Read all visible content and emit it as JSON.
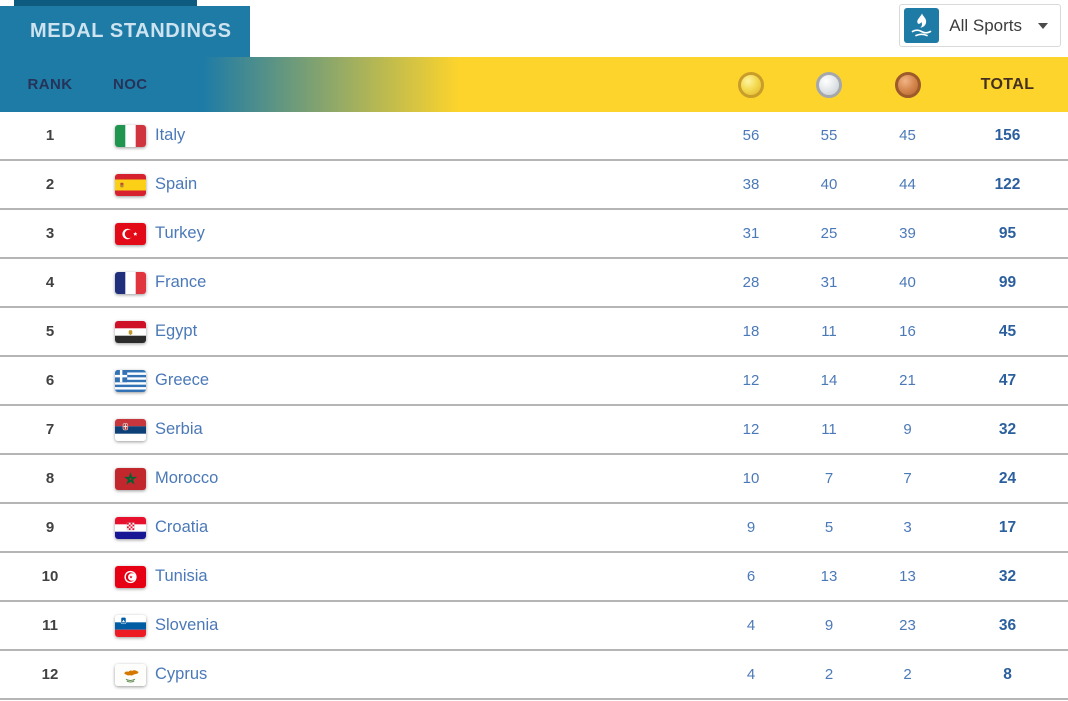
{
  "header": {
    "title": "MEDAL STANDINGS",
    "sport_filter": {
      "label": "All Sports",
      "icon": "games-torch-icon"
    }
  },
  "table": {
    "columns": {
      "rank": "RANK",
      "noc": "NOC",
      "gold": "gold-medal-icon",
      "silver": "silver-medal-icon",
      "bronze": "bronze-medal-icon",
      "total": "TOTAL"
    },
    "rows": [
      {
        "rank": "1",
        "country": "Italy",
        "flag": "it",
        "gold": "56",
        "silver": "55",
        "bronze": "45",
        "total": "156"
      },
      {
        "rank": "2",
        "country": "Spain",
        "flag": "es",
        "gold": "38",
        "silver": "40",
        "bronze": "44",
        "total": "122"
      },
      {
        "rank": "3",
        "country": "Turkey",
        "flag": "tr",
        "gold": "31",
        "silver": "25",
        "bronze": "39",
        "total": "95"
      },
      {
        "rank": "4",
        "country": "France",
        "flag": "fr",
        "gold": "28",
        "silver": "31",
        "bronze": "40",
        "total": "99"
      },
      {
        "rank": "5",
        "country": "Egypt",
        "flag": "eg",
        "gold": "18",
        "silver": "11",
        "bronze": "16",
        "total": "45"
      },
      {
        "rank": "6",
        "country": "Greece",
        "flag": "gr",
        "gold": "12",
        "silver": "14",
        "bronze": "21",
        "total": "47"
      },
      {
        "rank": "7",
        "country": "Serbia",
        "flag": "rs",
        "gold": "12",
        "silver": "11",
        "bronze": "9",
        "total": "32"
      },
      {
        "rank": "8",
        "country": "Morocco",
        "flag": "ma",
        "gold": "10",
        "silver": "7",
        "bronze": "7",
        "total": "24"
      },
      {
        "rank": "9",
        "country": "Croatia",
        "flag": "hr",
        "gold": "9",
        "silver": "5",
        "bronze": "3",
        "total": "17"
      },
      {
        "rank": "10",
        "country": "Tunisia",
        "flag": "tn",
        "gold": "6",
        "silver": "13",
        "bronze": "13",
        "total": "32"
      },
      {
        "rank": "11",
        "country": "Slovenia",
        "flag": "si",
        "gold": "4",
        "silver": "9",
        "bronze": "23",
        "total": "36"
      },
      {
        "rank": "12",
        "country": "Cyprus",
        "flag": "cy",
        "gold": "4",
        "silver": "2",
        "bronze": "2",
        "total": "8"
      }
    ]
  },
  "colors": {
    "teal": "#1e7ba6",
    "dark_teal": "#0d5c80",
    "yellow": "#fdd42c",
    "header_navy": "#263359",
    "header_total": "#44301f",
    "link_blue": "#4b79b8",
    "total_blue": "#2b5f9d"
  }
}
